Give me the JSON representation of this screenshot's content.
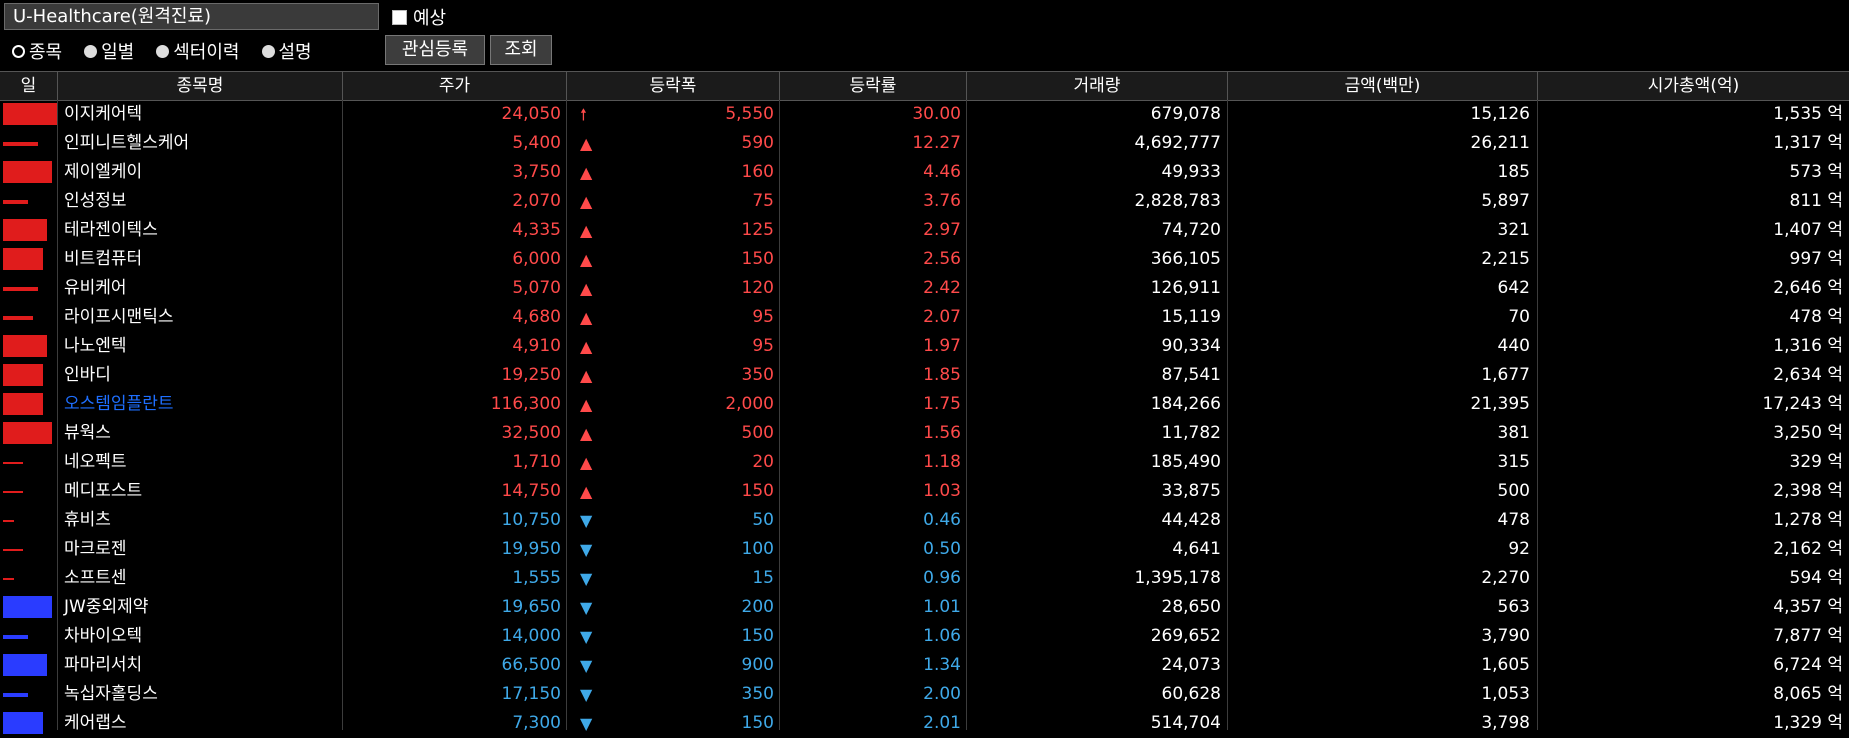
{
  "toolbar": {
    "title": "U-Healthcare(원격진료)",
    "forecast_label": "예상",
    "radios": [
      {
        "label": "종목",
        "selected": true
      },
      {
        "label": "일별",
        "selected": false
      },
      {
        "label": "섹터이력",
        "selected": false
      },
      {
        "label": "설명",
        "selected": false
      }
    ],
    "btn_watch": "관심등록",
    "btn_query": "조회"
  },
  "colors": {
    "up": "#ff4a4a",
    "down": "#3fa9e8",
    "highlight": "#1e6fff",
    "bar_red": "#e01c1c",
    "bar_blue": "#2a3cff"
  },
  "columns": [
    "일",
    "종목명",
    "주가",
    "등락폭",
    "등락률",
    "거래량",
    "금액(백만)",
    "시가총액(억)"
  ],
  "rows": [
    {
      "name": "이지케어텍",
      "price": "24,050",
      "dir": "limit-up",
      "change": "5,550",
      "rate": "30.00",
      "volume": "679,078",
      "amount": "15,126",
      "mcap": "1,535 억",
      "bar": "red",
      "level": 1.0
    },
    {
      "name": "인피니트헬스케어",
      "price": "5,400",
      "dir": "up",
      "change": "590",
      "rate": "12.27",
      "volume": "4,692,777",
      "amount": "26,211",
      "mcap": "1,317 억",
      "bar": "red",
      "level": 0.6
    },
    {
      "name": "제이엘케이",
      "price": "3,750",
      "dir": "up",
      "change": "160",
      "rate": "4.46",
      "volume": "49,933",
      "amount": "185",
      "mcap": "573 억",
      "bar": "red",
      "level": 0.9
    },
    {
      "name": "인성정보",
      "price": "2,070",
      "dir": "up",
      "change": "75",
      "rate": "3.76",
      "volume": "2,828,783",
      "amount": "5,897",
      "mcap": "811 억",
      "bar": "red",
      "level": 0.4
    },
    {
      "name": "테라젠이텍스",
      "price": "4,335",
      "dir": "up",
      "change": "125",
      "rate": "2.97",
      "volume": "74,720",
      "amount": "321",
      "mcap": "1,407 억",
      "bar": "red",
      "level": 0.8
    },
    {
      "name": "비트컴퓨터",
      "price": "6,000",
      "dir": "up",
      "change": "150",
      "rate": "2.56",
      "volume": "366,105",
      "amount": "2,215",
      "mcap": "997 억",
      "bar": "red",
      "level": 0.7
    },
    {
      "name": "유비케어",
      "price": "5,070",
      "dir": "up",
      "change": "120",
      "rate": "2.42",
      "volume": "126,911",
      "amount": "642",
      "mcap": "2,646 억",
      "bar": "red",
      "level": 0.6
    },
    {
      "name": "라이프시맨틱스",
      "price": "4,680",
      "dir": "up",
      "change": "95",
      "rate": "2.07",
      "volume": "15,119",
      "amount": "70",
      "mcap": "478 억",
      "bar": "red",
      "level": 0.5
    },
    {
      "name": "나노엔텍",
      "price": "4,910",
      "dir": "up",
      "change": "95",
      "rate": "1.97",
      "volume": "90,334",
      "amount": "440",
      "mcap": "1,316 억",
      "bar": "red",
      "level": 0.8
    },
    {
      "name": "인바디",
      "price": "19,250",
      "dir": "up",
      "change": "350",
      "rate": "1.85",
      "volume": "87,541",
      "amount": "1,677",
      "mcap": "2,634 억",
      "bar": "red",
      "level": 0.7
    },
    {
      "name": "오스템임플란트",
      "price": "116,300",
      "dir": "up",
      "change": "2,000",
      "rate": "1.75",
      "volume": "184,266",
      "amount": "21,395",
      "mcap": "17,243 억",
      "bar": "red",
      "level": 0.7,
      "highlight": true
    },
    {
      "name": "뷰웍스",
      "price": "32,500",
      "dir": "up",
      "change": "500",
      "rate": "1.56",
      "volume": "11,782",
      "amount": "381",
      "mcap": "3,250 억",
      "bar": "red",
      "level": 0.9
    },
    {
      "name": "네오펙트",
      "price": "1,710",
      "dir": "up",
      "change": "20",
      "rate": "1.18",
      "volume": "185,490",
      "amount": "315",
      "mcap": "329 억",
      "bar": "red",
      "level": 0.3
    },
    {
      "name": "메디포스트",
      "price": "14,750",
      "dir": "up",
      "change": "150",
      "rate": "1.03",
      "volume": "33,875",
      "amount": "500",
      "mcap": "2,398 억",
      "bar": "red",
      "level": 0.3
    },
    {
      "name": "휴비츠",
      "price": "10,750",
      "dir": "down",
      "change": "50",
      "rate": "0.46",
      "volume": "44,428",
      "amount": "478",
      "mcap": "1,278 억",
      "bar": "red",
      "level": 0.1
    },
    {
      "name": "마크로젠",
      "price": "19,950",
      "dir": "down",
      "change": "100",
      "rate": "0.50",
      "volume": "4,641",
      "amount": "92",
      "mcap": "2,162 억",
      "bar": "red",
      "level": 0.3
    },
    {
      "name": "소프트센",
      "price": "1,555",
      "dir": "down",
      "change": "15",
      "rate": "0.96",
      "volume": "1,395,178",
      "amount": "2,270",
      "mcap": "594 억",
      "bar": "red",
      "level": 0.1
    },
    {
      "name": "JW중외제약",
      "price": "19,650",
      "dir": "down",
      "change": "200",
      "rate": "1.01",
      "volume": "28,650",
      "amount": "563",
      "mcap": "4,357 억",
      "bar": "blue",
      "level": 0.9
    },
    {
      "name": "차바이오텍",
      "price": "14,000",
      "dir": "down",
      "change": "150",
      "rate": "1.06",
      "volume": "269,652",
      "amount": "3,790",
      "mcap": "7,877 억",
      "bar": "blue",
      "level": 0.4
    },
    {
      "name": "파마리서치",
      "price": "66,500",
      "dir": "down",
      "change": "900",
      "rate": "1.34",
      "volume": "24,073",
      "amount": "1,605",
      "mcap": "6,724 억",
      "bar": "blue",
      "level": 0.8
    },
    {
      "name": "녹십자홀딩스",
      "price": "17,150",
      "dir": "down",
      "change": "350",
      "rate": "2.00",
      "volume": "60,628",
      "amount": "1,053",
      "mcap": "8,065 억",
      "bar": "blue",
      "level": 0.4
    },
    {
      "name": "케어랩스",
      "price": "7,300",
      "dir": "down",
      "change": "150",
      "rate": "2.01",
      "volume": "514,704",
      "amount": "3,798",
      "mcap": "1,329 억",
      "bar": "blue",
      "level": 0.7
    }
  ]
}
